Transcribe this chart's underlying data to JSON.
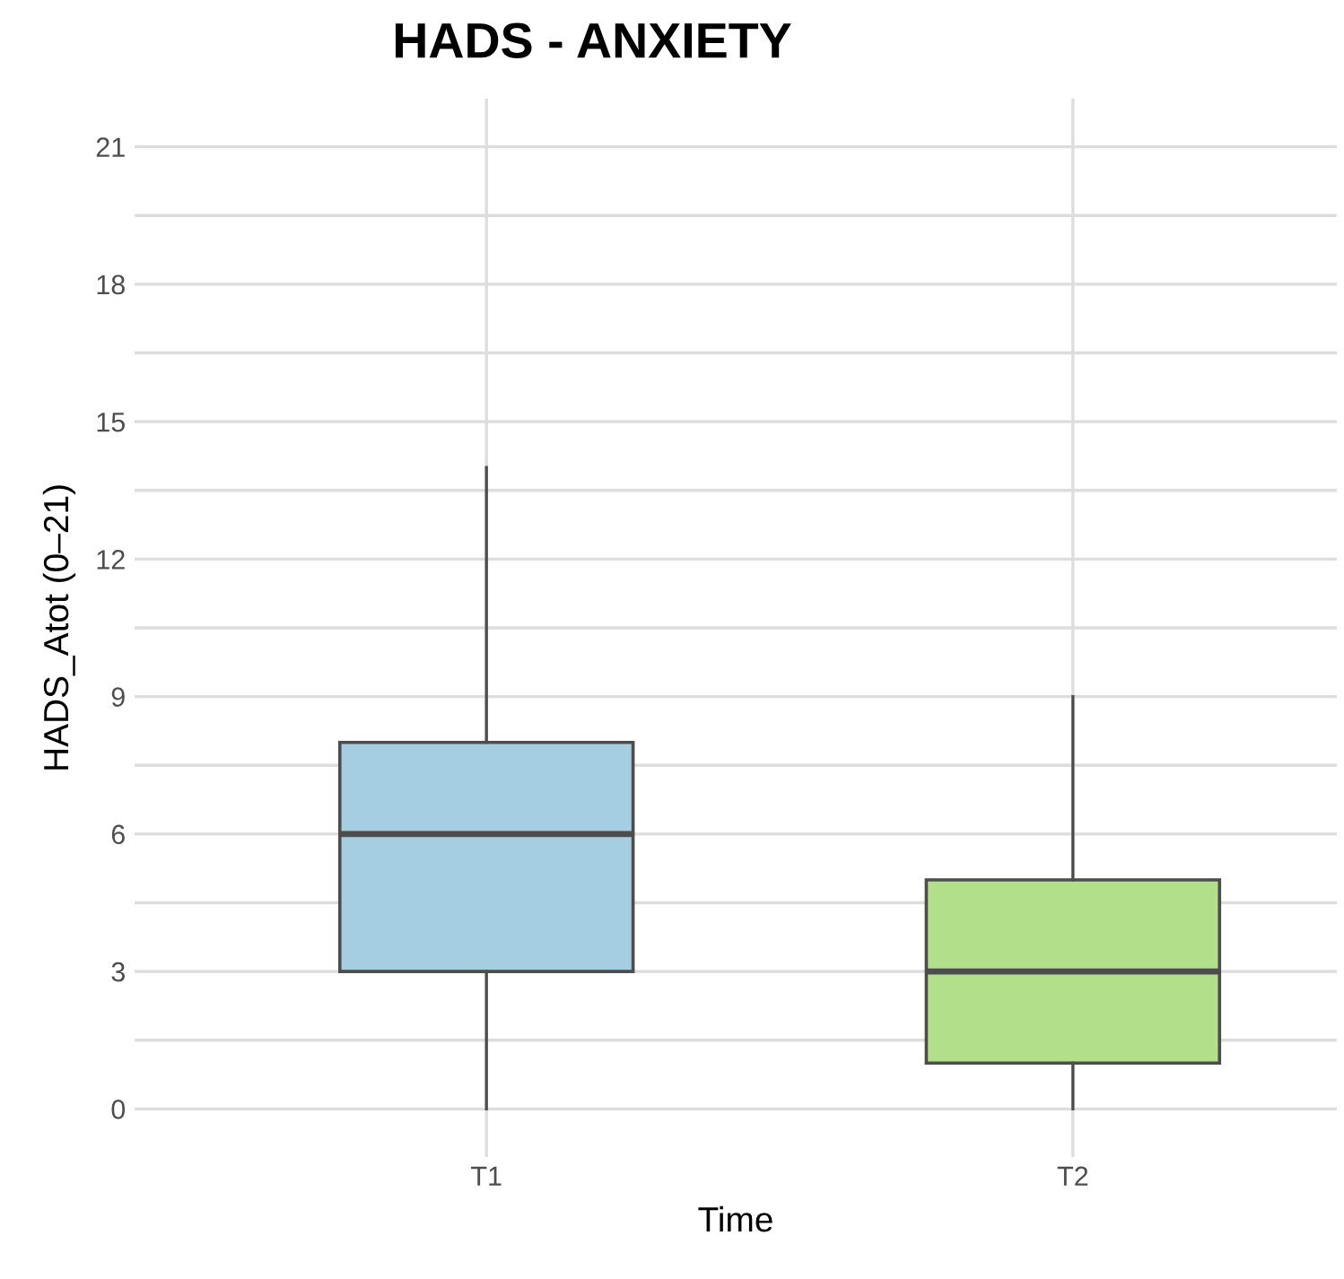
{
  "chart_data": {
    "type": "box",
    "title": "HADS - ANXIETY",
    "xlabel": "Time",
    "ylabel": "HADS_Atot (0–21)",
    "categories": [
      "T1",
      "T2"
    ],
    "colors": [
      "#a6cee3",
      "#b2df8a"
    ],
    "boxes": [
      {
        "low": 0,
        "q1": 3,
        "median": 6,
        "q3": 8,
        "high": 14
      },
      {
        "low": 0,
        "q1": 1,
        "median": 3,
        "q3": 5,
        "high": 9
      }
    ],
    "ylim": [
      -1.05,
      22.05
    ],
    "yticks": [
      0,
      {
        "value": 1.5,
        "label": null
      },
      3,
      {
        "value": 4.5,
        "label": null
      },
      6,
      {
        "value": 7.5,
        "label": null
      },
      9,
      {
        "value": 10.5,
        "label": null
      },
      12,
      {
        "value": 13.5,
        "label": null
      },
      15,
      {
        "value": 16.5,
        "label": null
      },
      18,
      {
        "value": 19.5,
        "label": null
      },
      21
    ],
    "grid": true
  }
}
